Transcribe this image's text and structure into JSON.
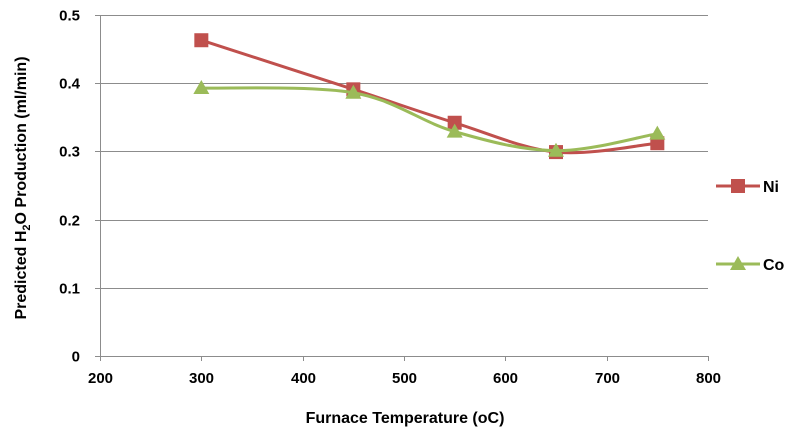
{
  "chart_data": {
    "type": "line",
    "xlabel": "Furnace Temperature (oC)",
    "ylabel": {
      "before": "Predicted H",
      "sub": "2",
      "after": "O Production (ml/min)"
    },
    "xlim": [
      200,
      800
    ],
    "ylim": [
      0,
      0.5
    ],
    "xticks": [
      200,
      300,
      400,
      500,
      600,
      700,
      800
    ],
    "yticks": [
      0,
      0.1,
      0.2,
      0.3,
      0.4,
      0.5
    ],
    "ytick_labels": [
      "0",
      "0.1",
      "0.2",
      "0.3",
      "0.4",
      "0.5"
    ],
    "grid": true,
    "legend_position": "right",
    "smooth": true,
    "series": [
      {
        "name": "Ni",
        "marker": "square",
        "color": "#c0504d",
        "x": [
          300,
          450,
          550,
          650,
          750
        ],
        "y": [
          0.463,
          0.391,
          0.342,
          0.299,
          0.312
        ]
      },
      {
        "name": "Co",
        "marker": "triangle",
        "color": "#9bbb59",
        "x": [
          300,
          450,
          550,
          650,
          750
        ],
        "y": [
          0.393,
          0.386,
          0.329,
          0.301,
          0.326
        ]
      }
    ]
  }
}
